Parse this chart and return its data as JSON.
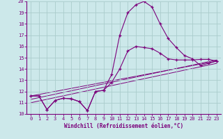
{
  "xlabel": "Windchill (Refroidissement éolien,°C)",
  "bg_color": "#cce8ea",
  "grid_color": "#aacccc",
  "line_color": "#7b007b",
  "spine_color": "#7b007b",
  "xlim": [
    -0.5,
    23.5
  ],
  "ylim": [
    10,
    20
  ],
  "yticks": [
    10,
    11,
    12,
    13,
    14,
    15,
    16,
    17,
    18,
    19,
    20
  ],
  "xticks": [
    0,
    1,
    2,
    3,
    4,
    5,
    6,
    7,
    8,
    9,
    10,
    11,
    12,
    13,
    14,
    15,
    16,
    17,
    18,
    19,
    20,
    21,
    22,
    23
  ],
  "line1_x": [
    0,
    1,
    2,
    3,
    4,
    5,
    6,
    7,
    8,
    9,
    10,
    11,
    12,
    13,
    14,
    15,
    16,
    17,
    18,
    19,
    20,
    21,
    22,
    23
  ],
  "line1_y": [
    11.6,
    11.6,
    10.4,
    11.2,
    11.4,
    11.35,
    11.1,
    10.3,
    12.0,
    12.1,
    12.8,
    14.0,
    15.6,
    16.0,
    15.9,
    15.8,
    15.4,
    14.9,
    14.8,
    14.8,
    14.8,
    14.85,
    14.85,
    14.7
  ],
  "line2_x": [
    0,
    1,
    2,
    3,
    4,
    5,
    6,
    7,
    8,
    9,
    10,
    11,
    12,
    13,
    14,
    15,
    16,
    17,
    18,
    19,
    20,
    21,
    22,
    23
  ],
  "line2_y": [
    11.6,
    11.6,
    10.4,
    11.2,
    11.4,
    11.35,
    11.1,
    10.3,
    12.0,
    12.1,
    13.5,
    17.0,
    19.0,
    19.7,
    20.0,
    19.5,
    18.0,
    16.7,
    15.9,
    15.2,
    14.9,
    14.3,
    14.5,
    14.7
  ],
  "line3_x": [
    0,
    23
  ],
  "line3_y": [
    11.6,
    14.7
  ],
  "line4_x": [
    0,
    23
  ],
  "line4_y": [
    11.3,
    14.8
  ],
  "line5_x": [
    0,
    23
  ],
  "line5_y": [
    11.0,
    14.5
  ]
}
